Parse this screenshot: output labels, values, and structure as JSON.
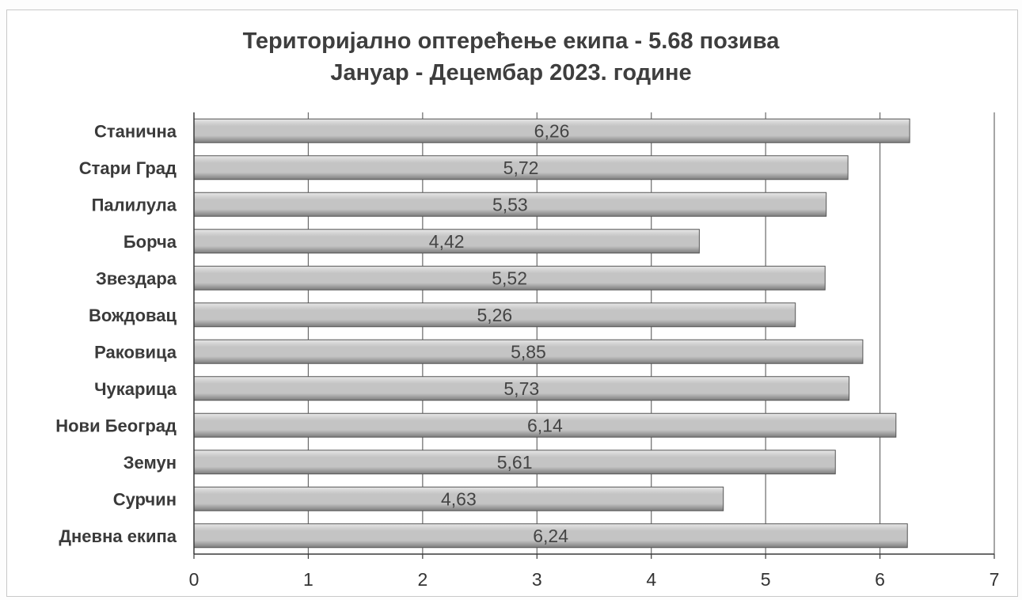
{
  "chart_data": {
    "type": "bar",
    "orientation": "horizontal",
    "title": "Територијално оптерећење екипа - 5.68 позива",
    "subtitle": "Јануар - Децембар 2023. године",
    "categories": [
      "Станична",
      "Стари Град",
      "Палилула",
      "Борча",
      "Звездара",
      "Вождовац",
      "Раковица",
      "Чукарица",
      "Нови Београд",
      "Земун",
      "Сурчин",
      "Дневна екипа"
    ],
    "values": [
      6.26,
      5.72,
      5.53,
      4.42,
      5.52,
      5.26,
      5.85,
      5.73,
      6.14,
      5.61,
      4.63,
      6.24
    ],
    "value_labels": [
      "6,26",
      "5,72",
      "5,53",
      "4,42",
      "5,52",
      "5,26",
      "5,85",
      "5,73",
      "6,14",
      "5,61",
      "4,63",
      "6,24"
    ],
    "xlim": [
      0,
      7
    ],
    "x_ticks": [
      "0",
      "1",
      "2",
      "3",
      "4",
      "5",
      "6",
      "7"
    ],
    "grid": true,
    "legend": false,
    "bar_color": "#c4c4c4",
    "bar_highlight": "#e6e6e6",
    "bar_shadow": "#7c7c7c"
  }
}
